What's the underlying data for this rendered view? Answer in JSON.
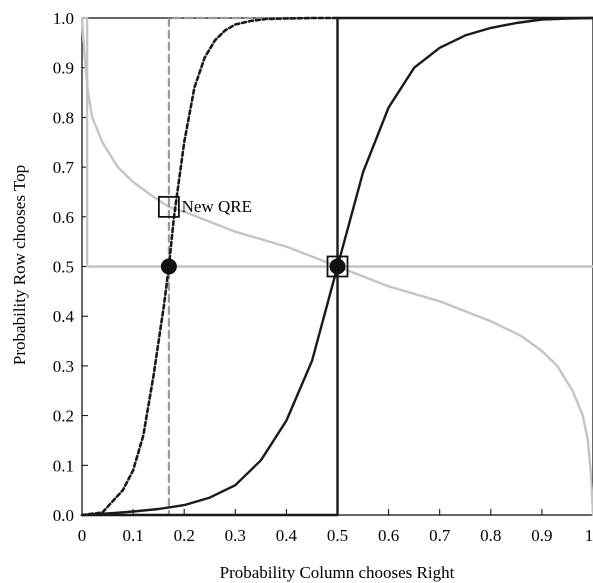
{
  "chart_data": {
    "type": "line",
    "xlabel": "Probability Column chooses Right",
    "ylabel": "Probability Row chooses Top",
    "xlim": [
      0,
      1
    ],
    "ylim": [
      0,
      1
    ],
    "xticks": [
      "0",
      "0.1",
      "0.2",
      "0.3",
      "0.4",
      "0.5",
      "0.6",
      "0.7",
      "0.8",
      "0.9",
      "1"
    ],
    "yticks": [
      "0.0",
      "0.1",
      "0.2",
      "0.3",
      "0.4",
      "0.5",
      "0.6",
      "0.7",
      "0.8",
      "0.9",
      "1.0"
    ],
    "grid": false,
    "series": [
      {
        "style": "solid-black",
        "x": [
          0,
          0.05,
          0.1,
          0.15,
          0.2,
          0.25,
          0.3,
          0.35,
          0.4,
          0.45,
          0.5,
          0.55,
          0.6,
          0.65,
          0.7,
          0.75,
          0.8,
          0.85,
          0.9,
          0.95,
          1.0
        ],
        "y": [
          0,
          0.003,
          0.007,
          0.012,
          0.02,
          0.035,
          0.06,
          0.11,
          0.19,
          0.31,
          0.5,
          0.69,
          0.82,
          0.9,
          0.94,
          0.965,
          0.98,
          0.99,
          0.997,
          0.999,
          1.0
        ]
      },
      {
        "style": "solid-black-step",
        "x": [
          0,
          0.5,
          0.5,
          1.0
        ],
        "y": [
          0,
          0,
          1,
          1
        ]
      },
      {
        "style": "dotted-black",
        "x": [
          0.0,
          0.04,
          0.08,
          0.1,
          0.12,
          0.14,
          0.16,
          0.17,
          0.18,
          0.2,
          0.22,
          0.24,
          0.26,
          0.28,
          0.3,
          0.33,
          0.36,
          0.4,
          0.45,
          0.5
        ],
        "y": [
          0.0,
          0.005,
          0.05,
          0.09,
          0.16,
          0.28,
          0.42,
          0.5,
          0.6,
          0.75,
          0.86,
          0.92,
          0.955,
          0.975,
          0.987,
          0.994,
          0.998,
          0.999,
          1.0,
          1.0
        ]
      },
      {
        "style": "dashed-gray-step",
        "x": [
          0,
          0.17,
          0.17,
          0.5
        ],
        "y": [
          0,
          0,
          1,
          1
        ]
      },
      {
        "style": "solid-gray",
        "x": [
          0.0,
          0.003,
          0.007,
          0.012,
          0.02,
          0.04,
          0.07,
          0.1,
          0.14,
          0.17,
          0.2,
          0.3,
          0.4,
          0.5,
          0.6,
          0.7,
          0.8,
          0.86,
          0.9,
          0.93,
          0.96,
          0.98,
          0.99,
          0.996,
          1.0
        ],
        "y": [
          1.0,
          0.95,
          0.9,
          0.85,
          0.8,
          0.75,
          0.7,
          0.67,
          0.64,
          0.62,
          0.61,
          0.57,
          0.54,
          0.5,
          0.46,
          0.43,
          0.39,
          0.36,
          0.33,
          0.3,
          0.25,
          0.2,
          0.15,
          0.08,
          0.0
        ]
      },
      {
        "style": "solid-gray-step",
        "x": [
          0.005,
          0.01,
          0.01,
          1.0
        ],
        "y": [
          1.0,
          1.0,
          0.5,
          0.5
        ]
      }
    ],
    "points": [
      {
        "marker": "filled-circle",
        "x": 0.17,
        "y": 0.5
      },
      {
        "marker": "filled-circle",
        "x": 0.5,
        "y": 0.5
      },
      {
        "marker": "open-square",
        "x": 0.5,
        "y": 0.5
      },
      {
        "marker": "open-square",
        "x": 0.17,
        "y": 0.62
      }
    ],
    "annotations": [
      {
        "text": "New QRE",
        "x": 0.195,
        "y": 0.622
      }
    ]
  }
}
